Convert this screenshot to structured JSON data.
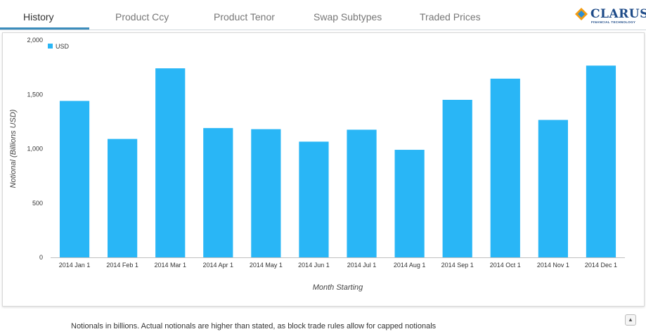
{
  "tabs": [
    {
      "label": "History",
      "active": true
    },
    {
      "label": "Product Ccy",
      "active": false
    },
    {
      "label": "Product Tenor",
      "active": false
    },
    {
      "label": "Swap Subtypes",
      "active": false
    },
    {
      "label": "Traded Prices",
      "active": false
    }
  ],
  "logo": {
    "name": "CLARUS",
    "tagline": "FINANCIAL TECHNOLOGY"
  },
  "chart_data": {
    "type": "bar",
    "categories": [
      "2014 Jan 1",
      "2014 Feb 1",
      "2014 Mar 1",
      "2014 Apr 1",
      "2014 May 1",
      "2014 Jun 1",
      "2014 Jul 1",
      "2014 Aug 1",
      "2014 Sep 1",
      "2014 Oct 1",
      "2014 Nov 1",
      "2014 Dec 1"
    ],
    "series": [
      {
        "name": "USD",
        "color": "#29b6f6",
        "values": [
          1440,
          1090,
          1740,
          1190,
          1180,
          1065,
          1175,
          990,
          1450,
          1645,
          1265,
          1765
        ]
      }
    ],
    "xlabel": "Month Starting",
    "ylabel": "Notional (Billions USD)",
    "ylim": [
      0,
      2000
    ],
    "yticks": [
      0,
      500,
      1000,
      1500,
      2000
    ],
    "ytick_labels": [
      "0",
      "500",
      "1,000",
      "1,500",
      "2,000"
    ],
    "legend": "top-left",
    "grid": false
  },
  "footnote": "Notionals in billions. Actual notionals are higher than stated, as block trade rules allow for capped notionals",
  "collapse_icon": "collapse-up-icon"
}
